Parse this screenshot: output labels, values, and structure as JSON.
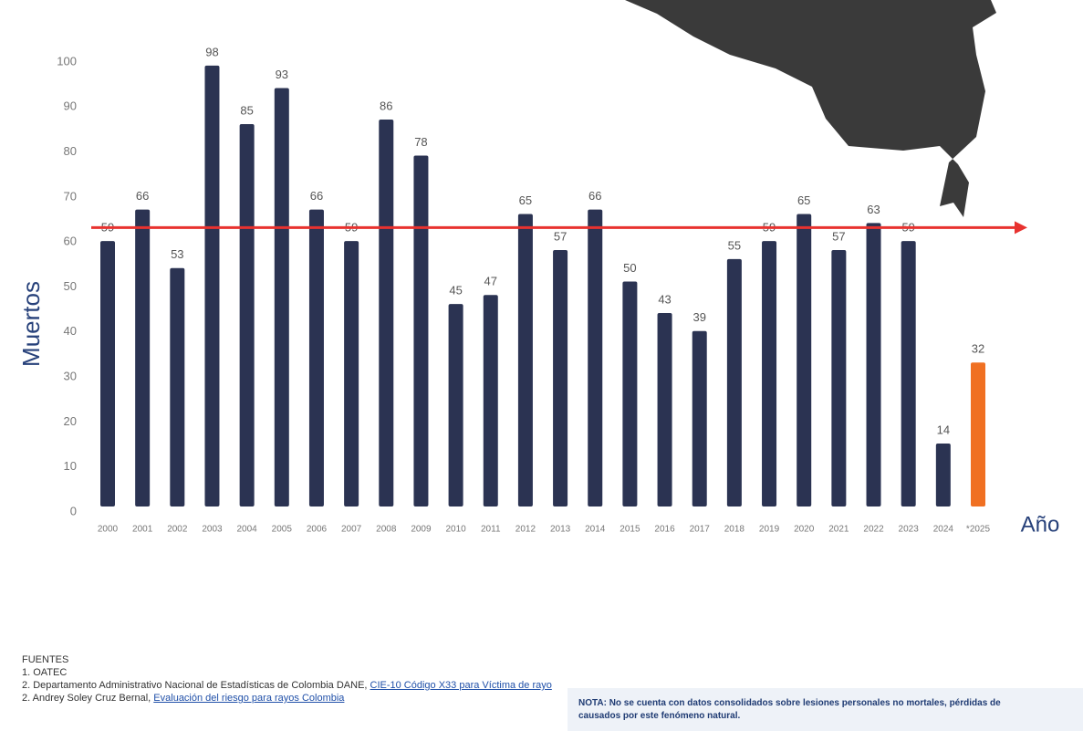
{
  "chart_data": {
    "type": "bar",
    "y_label": "Muertos",
    "x_label": "Año",
    "categories": [
      "2000",
      "2001",
      "2002",
      "2003",
      "2004",
      "2005",
      "2006",
      "2007",
      "2008",
      "2009",
      "2010",
      "2011",
      "2012",
      "2013",
      "2014",
      "2015",
      "2016",
      "2017",
      "2018",
      "2019",
      "2020",
      "2021",
      "2022",
      "2023",
      "2024",
      "*2025"
    ],
    "values": [
      59,
      66,
      53,
      98,
      85,
      93,
      66,
      59,
      86,
      78,
      45,
      47,
      65,
      57,
      66,
      50,
      43,
      39,
      55,
      59,
      65,
      57,
      63,
      59,
      14,
      32
    ],
    "colors": [
      "#2b3352",
      "#2b3352",
      "#2b3352",
      "#2b3352",
      "#2b3352",
      "#2b3352",
      "#2b3352",
      "#2b3352",
      "#2b3352",
      "#2b3352",
      "#2b3352",
      "#2b3352",
      "#2b3352",
      "#2b3352",
      "#2b3352",
      "#2b3352",
      "#2b3352",
      "#2b3352",
      "#2b3352",
      "#2b3352",
      "#2b3352",
      "#2b3352",
      "#2b3352",
      "#2b3352",
      "#2b3352",
      "#f07022"
    ],
    "ylim": [
      0,
      100
    ],
    "yticks": [
      0,
      10,
      20,
      30,
      40,
      50,
      60,
      70,
      80,
      90,
      100
    ],
    "grid": false,
    "reference_line": {
      "value": 62,
      "color": "#e8322f"
    }
  },
  "sources": {
    "title": "FUENTES",
    "items": [
      {
        "text": "1. OATEC"
      },
      {
        "text": "2. Departamento Administrativo Nacional de Estadísticas de Colombia DANE, ",
        "link": "CIE-10 Código X33 para Víctima de rayo"
      },
      {
        "text": "2. Andrey Soley Cruz Bernal, ",
        "link": "Evaluación del riesgo para rayos Colombia"
      }
    ]
  },
  "note": [
    "NOTA: No se cuenta con datos consolidados sobre lesiones personales no mortales, pérdidas de",
    "causados por este fenómeno natural."
  ]
}
